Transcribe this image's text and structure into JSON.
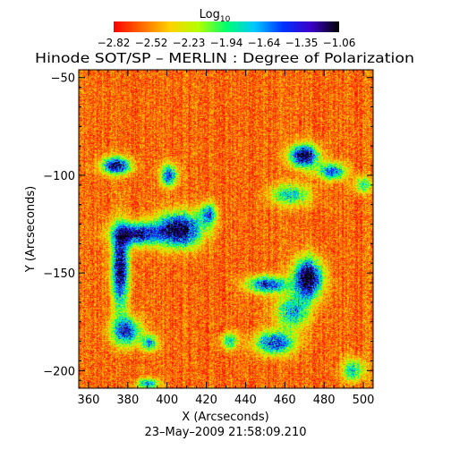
{
  "chart_data": {
    "type": "heatmap",
    "title": "Hinode SOT/SP – MERLIN : Degree of Polarization",
    "colorbar": {
      "label": "Log",
      "label_sub": "10",
      "ticks": [
        "−2.82",
        "−2.52",
        "−2.23",
        "−1.94",
        "−1.64",
        "−1.35",
        "−1.06"
      ],
      "range": [
        -2.82,
        -1.06
      ],
      "colors": [
        "#ff0000",
        "#ff6a00",
        "#ffd200",
        "#b4ff00",
        "#00ff6e",
        "#00c8ff",
        "#0032ff",
        "#3c00c8",
        "#000000"
      ]
    },
    "xlabel": "X (Arcseconds)",
    "ylabel": "Y (Arcseconds)",
    "xlim": [
      355,
      505
    ],
    "ylim": [
      -209,
      -46
    ],
    "xticks": [
      {
        "value": 360,
        "label": "360"
      },
      {
        "value": 380,
        "label": "380"
      },
      {
        "value": 400,
        "label": "400"
      },
      {
        "value": 420,
        "label": "420"
      },
      {
        "value": 440,
        "label": "440"
      },
      {
        "value": 460,
        "label": "460"
      },
      {
        "value": 480,
        "label": "480"
      },
      {
        "value": 500,
        "label": "500"
      }
    ],
    "yticks": [
      {
        "value": -50,
        "label": "−50"
      },
      {
        "value": -100,
        "label": "−100"
      },
      {
        "value": -150,
        "label": "−150"
      },
      {
        "value": -200,
        "label": "−200"
      }
    ],
    "date_label": "23–May–2009 21:58:09.210",
    "background_level": -2.6,
    "features": [
      {
        "x": 374,
        "y": -95,
        "sx": 5,
        "sy": 3,
        "amp": 1.5
      },
      {
        "x": 401,
        "y": -100,
        "sx": 3,
        "sy": 4,
        "amp": 1.1
      },
      {
        "x": 384,
        "y": -130,
        "sx": 8,
        "sy": 4,
        "amp": 1.4
      },
      {
        "x": 406,
        "y": -128,
        "sx": 8,
        "sy": 6,
        "amp": 1.6
      },
      {
        "x": 421,
        "y": -120,
        "sx": 3,
        "sy": 4,
        "amp": 1.0
      },
      {
        "x": 376,
        "y": -148,
        "sx": 3,
        "sy": 14,
        "amp": 1.5
      },
      {
        "x": 379,
        "y": -180,
        "sx": 5,
        "sy": 5,
        "amp": 1.2
      },
      {
        "x": 391,
        "y": -186,
        "sx": 3,
        "sy": 3,
        "amp": 0.9
      },
      {
        "x": 470,
        "y": -90,
        "sx": 5,
        "sy": 4,
        "amp": 1.6
      },
      {
        "x": 484,
        "y": -98,
        "sx": 5,
        "sy": 3,
        "amp": 1.1
      },
      {
        "x": 463,
        "y": -110,
        "sx": 7,
        "sy": 4,
        "amp": 0.8
      },
      {
        "x": 472,
        "y": -153,
        "sx": 5,
        "sy": 7,
        "amp": 1.7
      },
      {
        "x": 451,
        "y": -156,
        "sx": 7,
        "sy": 3,
        "amp": 1.2
      },
      {
        "x": 464,
        "y": -170,
        "sx": 6,
        "sy": 6,
        "amp": 0.9
      },
      {
        "x": 455,
        "y": -186,
        "sx": 7,
        "sy": 4,
        "amp": 1.2
      },
      {
        "x": 432,
        "y": -185,
        "sx": 3,
        "sy": 3,
        "amp": 0.8
      },
      {
        "x": 495,
        "y": -200,
        "sx": 4,
        "sy": 4,
        "amp": 0.8
      },
      {
        "x": 390,
        "y": -207,
        "sx": 4,
        "sy": 2,
        "amp": 0.9
      },
      {
        "x": 500,
        "y": -105,
        "sx": 3,
        "sy": 3,
        "amp": 0.7
      }
    ]
  }
}
